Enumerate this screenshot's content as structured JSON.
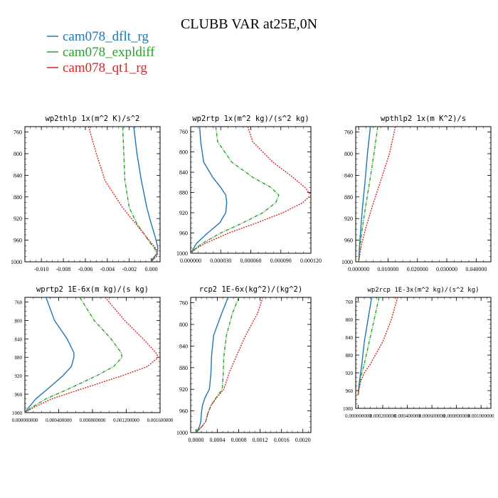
{
  "title": "CLUBB VAR at25E,0N",
  "legend": [
    {
      "name": "cam078_dflt_rg",
      "color": "#1f77b4"
    },
    {
      "name": "cam078_expldiff",
      "color": "#2ca02c"
    },
    {
      "name": "cam078_qt1_rg",
      "color": "#d62728"
    }
  ],
  "chart_data": [
    {
      "type": "line",
      "title": "wp2thlp  1x(m^2 K)/s^2",
      "ylim": [
        1000,
        750
      ],
      "yticks": [
        {
          "v": 760,
          "label": "760"
        },
        {
          "v": 800,
          "label": "800"
        },
        {
          "v": 840,
          "label": "840"
        },
        {
          "v": 880,
          "label": "880"
        },
        {
          "v": 920,
          "label": "920"
        },
        {
          "v": 960,
          "label": "960"
        },
        {
          "v": 1000,
          "label": "1000"
        }
      ],
      "xlim": [
        -0.0115,
        0.0008
      ],
      "xticks": [
        {
          "v": -0.01,
          "label": "-0.010"
        },
        {
          "v": -0.008,
          "label": "-0.008"
        },
        {
          "v": -0.006,
          "label": "-0.006"
        },
        {
          "v": -0.004,
          "label": "-0.004"
        },
        {
          "v": -0.002,
          "label": "-0.002"
        },
        {
          "v": 0.0,
          "label": "0.000"
        }
      ],
      "y": [
        750,
        800,
        850,
        900,
        930,
        950,
        965,
        975,
        985,
        990,
        995,
        1000
      ],
      "series": [
        {
          "name": "cam078_dflt_rg",
          "values": [
            -0.0016,
            -0.0013,
            -0.0009,
            -0.0004,
            0.0,
            0.0003,
            0.0005,
            0.0006,
            0.0005,
            0.0003,
            0.0001,
            0.0
          ]
        },
        {
          "name": "cam078_expldiff",
          "values": [
            -0.0026,
            -0.0025,
            -0.0024,
            -0.002,
            -0.0013,
            -0.0006,
            -0.0001,
            0.0003,
            0.0005,
            0.0004,
            0.0002,
            0.0
          ]
        },
        {
          "name": "cam078_qt1_rg",
          "values": [
            -0.0057,
            -0.005,
            -0.0042,
            -0.0026,
            -0.0014,
            -0.0006,
            0.0,
            0.0004,
            0.0006,
            0.0005,
            0.0002,
            0.0
          ]
        }
      ]
    },
    {
      "type": "line",
      "title": "wp2rtp  1x(m^2 kg)/(s^2 kg)",
      "ylim": [
        1000,
        750
      ],
      "yticks": [
        {
          "v": 760,
          "label": "760"
        },
        {
          "v": 800,
          "label": "800"
        },
        {
          "v": 840,
          "label": "840"
        },
        {
          "v": 880,
          "label": "880"
        },
        {
          "v": 920,
          "label": "920"
        },
        {
          "v": 960,
          "label": "960"
        },
        {
          "v": 1000,
          "label": "1000"
        }
      ],
      "xlim": [
        0,
        0.00012
      ],
      "xticks": [
        {
          "v": 0.0,
          "label": "0.000000"
        },
        {
          "v": 3e-05,
          "label": "0.000030"
        },
        {
          "v": 6e-05,
          "label": "0.000060"
        },
        {
          "v": 9e-05,
          "label": "0.000090"
        },
        {
          "v": 0.00012,
          "label": "0.000120"
        }
      ],
      "y": [
        750,
        780,
        820,
        850,
        870,
        885,
        900,
        920,
        940,
        960,
        980,
        990,
        1000
      ],
      "series": [
        {
          "name": "cam078_dflt_rg",
          "values": [
            9e-06,
            1e-05,
            1.3e-05,
            2.2e-05,
            3e-05,
            3.5e-05,
            3.6e-05,
            3.5e-05,
            2.9e-05,
            1.7e-05,
            6e-06,
            3e-06,
            0.0
          ]
        },
        {
          "name": "cam078_expldiff",
          "values": [
            2.5e-05,
            2.7e-05,
            4.1e-05,
            6.2e-05,
            8e-05,
            8.8e-05,
            8.5e-05,
            7.2e-05,
            5.2e-05,
            3e-05,
            1.2e-05,
            5e-06,
            0.0
          ]
        },
        {
          "name": "cam078_qt1_rg",
          "values": [
            5.7e-05,
            6.2e-05,
            8.2e-05,
            0.000102,
            0.000114,
            0.00012,
            0.000112,
            9.2e-05,
            6.6e-05,
            3.8e-05,
            1.5e-05,
            6e-06,
            0.0
          ]
        }
      ]
    },
    {
      "type": "line",
      "title": "wpthlp2  1x(m K^2)/s",
      "ylim": [
        1000,
        750
      ],
      "yticks": [
        {
          "v": 760,
          "label": "760"
        },
        {
          "v": 800,
          "label": "800"
        },
        {
          "v": 840,
          "label": "840"
        },
        {
          "v": 880,
          "label": "880"
        },
        {
          "v": 920,
          "label": "920"
        },
        {
          "v": 960,
          "label": "960"
        },
        {
          "v": 1000,
          "label": "1000"
        }
      ],
      "xlim": [
        -0.001,
        0.045
      ],
      "xticks": [
        {
          "v": 0.0,
          "label": "0.000000"
        },
        {
          "v": 0.01,
          "label": "0.010000"
        },
        {
          "v": 0.02,
          "label": "0.020000"
        },
        {
          "v": 0.03,
          "label": "0.030000"
        },
        {
          "v": 0.04,
          "label": "0.040000"
        }
      ],
      "y": [
        750,
        800,
        850,
        900,
        940,
        970,
        990,
        1000
      ],
      "series": [
        {
          "name": "cam078_dflt_rg",
          "values": [
            0.004,
            0.003,
            0.0022,
            0.0013,
            0.0007,
            0.0003,
            0.0001,
            0.0
          ]
        },
        {
          "name": "cam078_expldiff",
          "values": [
            0.0065,
            0.0052,
            0.0038,
            0.0023,
            0.0012,
            0.0005,
            0.0002,
            0.0
          ]
        },
        {
          "name": "cam078_qt1_rg",
          "values": [
            0.0125,
            0.0105,
            0.0075,
            0.0045,
            0.0023,
            0.0009,
            0.0003,
            0.0
          ]
        }
      ]
    },
    {
      "type": "line",
      "title": "wprtp2  1E-6x(m kg)/(s kg)",
      "ylim": [
        1000,
        750
      ],
      "yticks": [
        {
          "v": 760,
          "label": "760"
        },
        {
          "v": 800,
          "label": "800"
        },
        {
          "v": 840,
          "label": "840"
        },
        {
          "v": 880,
          "label": "880"
        },
        {
          "v": 920,
          "label": "920"
        },
        {
          "v": 960,
          "label": "960"
        },
        {
          "v": 1000,
          "label": "1000"
        }
      ],
      "xlim": [
        0,
        0.0016
      ],
      "xticks": [
        {
          "v": 0.0,
          "label": "0.000000000"
        },
        {
          "v": 0.0004,
          "label": "0.000400000"
        },
        {
          "v": 0.0008,
          "label": "0.000800000"
        },
        {
          "v": 0.0012,
          "label": "0.001200000"
        },
        {
          "v": 0.0016,
          "label": "0.001600000"
        }
      ],
      "y": [
        750,
        800,
        840,
        870,
        880,
        900,
        920,
        950,
        970,
        990,
        1000
      ],
      "series": [
        {
          "name": "cam078_dflt_rg",
          "values": [
            0.00025,
            0.00035,
            0.0005,
            0.00058,
            0.00058,
            0.00055,
            0.00045,
            0.00026,
            0.00013,
            4e-05,
            0.0
          ]
        },
        {
          "name": "cam078_expldiff",
          "values": [
            0.00065,
            0.00082,
            0.00102,
            0.00114,
            0.00115,
            0.00105,
            0.00085,
            0.0005,
            0.00025,
            7e-05,
            0.0
          ]
        },
        {
          "name": "cam078_qt1_rg",
          "values": [
            0.00095,
            0.00118,
            0.0014,
            0.00155,
            0.00158,
            0.00145,
            0.00115,
            0.00065,
            0.00032,
            9e-05,
            0.0
          ]
        }
      ]
    },
    {
      "type": "line",
      "title": "rcp2  1E-6x(kg^2)/(kg^2)",
      "ylim": [
        1000,
        750
      ],
      "yticks": [
        {
          "v": 760,
          "label": "760"
        },
        {
          "v": 800,
          "label": "800"
        },
        {
          "v": 840,
          "label": "840"
        },
        {
          "v": 880,
          "label": "880"
        },
        {
          "v": 920,
          "label": "920"
        },
        {
          "v": 960,
          "label": "960"
        },
        {
          "v": 1000,
          "label": "1000"
        }
      ],
      "xlim": [
        -0.0001,
        0.00215
      ],
      "xticks": [
        {
          "v": 0.0,
          "label": "0.0000"
        },
        {
          "v": 0.0004,
          "label": "0.0004"
        },
        {
          "v": 0.0008,
          "label": "0.0008"
        },
        {
          "v": 0.0012,
          "label": "0.0012"
        },
        {
          "v": 0.0016,
          "label": "0.0016"
        },
        {
          "v": 0.002,
          "label": "0.0020"
        }
      ],
      "y": [
        750,
        780,
        820,
        860,
        890,
        920,
        935,
        950,
        965,
        980,
        990,
        1000
      ],
      "series": [
        {
          "name": "cam078_dflt_rg",
          "values": [
            0.0006,
            0.00048,
            0.00033,
            0.00029,
            0.00028,
            0.00025,
            0.00017,
            0.00012,
            0.0001,
            9e-05,
            6e-05,
            0.0
          ]
        },
        {
          "name": "cam078_expldiff",
          "values": [
            0.0008,
            0.00068,
            0.00057,
            0.00052,
            0.00051,
            0.00049,
            0.00038,
            0.00028,
            0.00022,
            0.00018,
            0.0001,
            0.0
          ]
        },
        {
          "name": "cam078_qt1_rg",
          "values": [
            0.00125,
            0.00115,
            0.00093,
            0.00075,
            0.00062,
            0.00052,
            0.00039,
            0.00028,
            0.00022,
            0.00018,
            0.0001,
            0.0
          ]
        }
      ]
    },
    {
      "type": "line",
      "title": "wp2rcp  1E-3x(m^2 kg)/(s^2 kg)",
      "ylim": [
        1000,
        750
      ],
      "yticks": [
        {
          "v": 760,
          "label": "760"
        },
        {
          "v": 800,
          "label": "800"
        },
        {
          "v": 840,
          "label": "840"
        },
        {
          "v": 880,
          "label": "880"
        },
        {
          "v": 920,
          "label": "920"
        },
        {
          "v": 960,
          "label": "960"
        },
        {
          "v": 1000,
          "label": "1000"
        }
      ],
      "xlim": [
        -2e-05,
        0.00108
      ],
      "xticks": [
        {
          "v": 0.0,
          "label": "0.000000000"
        },
        {
          "v": 0.0002,
          "label": "0.000200000"
        },
        {
          "v": 0.0004,
          "label": "0.000400000"
        },
        {
          "v": 0.0006,
          "label": "0.000600000"
        },
        {
          "v": 0.0008,
          "label": "0.000800000"
        },
        {
          "v": 0.001,
          "label": "0.001000000"
        }
      ],
      "y": [
        750,
        800,
        850,
        900,
        920,
        940,
        960,
        970
      ],
      "series": [
        {
          "name": "cam078_dflt_rg",
          "values": [
            0.00011,
            8e-05,
            5e-05,
            3e-05,
            2e-05,
            1e-05,
            2e-06,
            0.0
          ]
        },
        {
          "name": "cam078_expldiff",
          "values": [
            0.00017,
            0.00013,
            9e-05,
            5e-05,
            3e-05,
            1.5e-05,
            3e-06,
            0.0
          ]
        },
        {
          "name": "cam078_qt1_rg",
          "values": [
            0.00032,
            0.00027,
            0.0002,
            0.0001,
            5e-05,
            2e-05,
            4e-06,
            0.0
          ]
        }
      ]
    }
  ]
}
